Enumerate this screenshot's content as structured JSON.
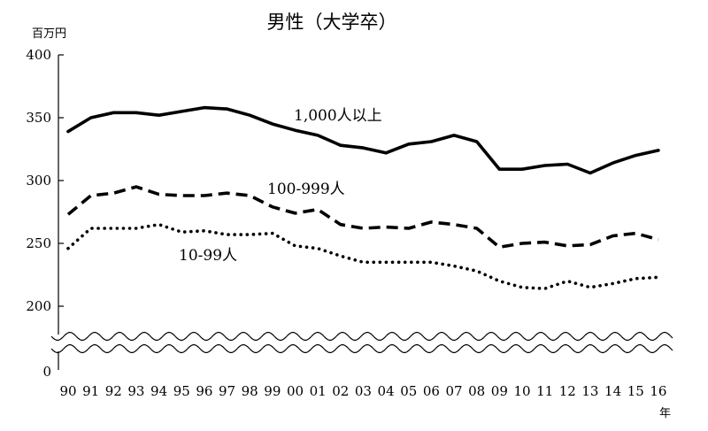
{
  "chart_data": {
    "type": "line",
    "title": "男性（大学卒）",
    "ylabel": "百万円",
    "xlabel": "年",
    "ylim": [
      200,
      400
    ],
    "yticks": [
      200,
      250,
      300,
      350,
      400
    ],
    "y_axis_break": true,
    "y_zero_label": "0",
    "categories": [
      "90",
      "91",
      "92",
      "93",
      "94",
      "95",
      "96",
      "97",
      "98",
      "99",
      "00",
      "01",
      "02",
      "03",
      "04",
      "05",
      "06",
      "07",
      "08",
      "09",
      "10",
      "11",
      "12",
      "13",
      "14",
      "15",
      "16"
    ],
    "series": [
      {
        "name": "1,000人以上",
        "style": "solid",
        "color": "#000000",
        "values": [
          339,
          350,
          354,
          354,
          352,
          355,
          358,
          357,
          352,
          345,
          340,
          336,
          328,
          326,
          322,
          329,
          331,
          336,
          331,
          309,
          309,
          312,
          313,
          306,
          314,
          320,
          324
        ]
      },
      {
        "name": "100-999人",
        "style": "dashed",
        "color": "#000000",
        "values": [
          273,
          288,
          290,
          295,
          289,
          288,
          288,
          290,
          288,
          279,
          274,
          277,
          265,
          262,
          263,
          262,
          267,
          265,
          262,
          247,
          250,
          251,
          248,
          249,
          256,
          258,
          253
        ]
      },
      {
        "name": "10-99人",
        "style": "dotted",
        "color": "#000000",
        "values": [
          246,
          262,
          262,
          262,
          265,
          259,
          260,
          257,
          257,
          258,
          248,
          246,
          240,
          235,
          235,
          235,
          235,
          232,
          228,
          220,
          215,
          214,
          220,
          215,
          218,
          222,
          223
        ]
      }
    ]
  }
}
